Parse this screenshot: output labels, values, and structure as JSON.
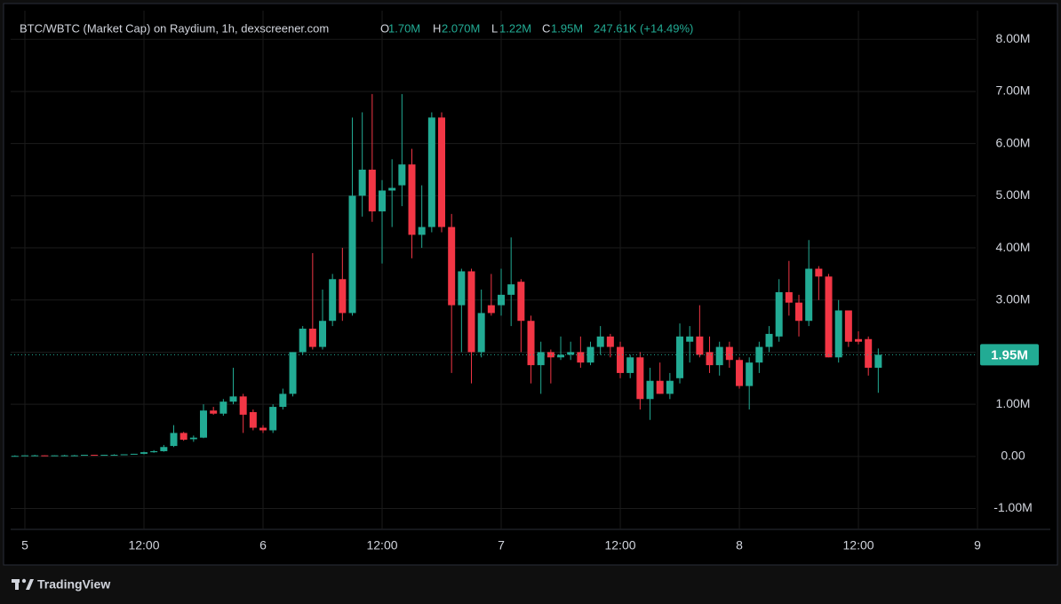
{
  "chart_data": {
    "type": "candlestick",
    "title": "BTC/WBTC (Market Cap) on Raydium, 1h, dexscreener.com",
    "legend": [
      {
        "key": "O",
        "value": "1.70M"
      },
      {
        "key": "H",
        "value": "2.070M"
      },
      {
        "key": "L",
        "value": "1.22M"
      },
      {
        "key": "C",
        "value": "1.95M"
      }
    ],
    "change": "247.61K (+14.49%)",
    "brand": "TradingView",
    "up_color": "#22ab94",
    "down_color": "#f23645",
    "grid": true,
    "ylim": [
      -1.4,
      8.55
    ],
    "yticks": [
      {
        "value": -1,
        "label": "-1.00M"
      },
      {
        "value": 0,
        "label": "0.00"
      },
      {
        "value": 1,
        "label": "1.00M"
      },
      {
        "value": 2,
        "label": "2.00M"
      },
      {
        "value": 3,
        "label": "3.00M"
      },
      {
        "value": 4,
        "label": "4.00M"
      },
      {
        "value": 5,
        "label": "5.00M"
      },
      {
        "value": 6,
        "label": "6.00M"
      },
      {
        "value": 7,
        "label": "7.00M"
      },
      {
        "value": 8,
        "label": "8.00M"
      }
    ],
    "last_price": {
      "value": 1.95,
      "label": "1.95M"
    },
    "categories": [
      null,
      "5",
      null,
      null,
      null,
      null,
      null,
      null,
      null,
      null,
      null,
      null,
      null,
      "12:00",
      null,
      null,
      null,
      null,
      null,
      null,
      null,
      null,
      null,
      null,
      null,
      "6",
      null,
      null,
      null,
      null,
      null,
      null,
      null,
      null,
      null,
      null,
      null,
      "12:00",
      null,
      null,
      null,
      null,
      null,
      null,
      null,
      null,
      null,
      null,
      null,
      "7",
      null,
      null,
      null,
      null,
      null,
      null,
      null,
      null,
      null,
      null,
      null,
      "12:00",
      null,
      null,
      null,
      null,
      null,
      null,
      null,
      null,
      null,
      null,
      null,
      "8",
      null,
      null,
      null,
      null,
      null,
      null,
      null,
      null,
      null,
      null,
      null,
      "12:00",
      null,
      null,
      null,
      null,
      null,
      null,
      null,
      null,
      null,
      null,
      null,
      "9"
    ],
    "open": [
      0.01,
      0.01,
      0.02,
      0.02,
      0.01,
      0.02,
      0.02,
      0.02,
      0.03,
      0.02,
      0.03,
      0.03,
      0.04,
      0.05,
      0.08,
      0.1,
      0.2,
      0.45,
      0.33,
      0.36,
      0.88,
      0.82,
      1.05,
      1.15,
      0.85,
      0.55,
      0.5,
      0.95,
      1.2,
      2.0,
      2.45,
      2.1,
      2.6,
      3.4,
      2.75,
      5.0,
      5.5,
      4.7,
      5.1,
      5.2,
      5.6,
      4.25,
      4.4,
      6.5,
      4.4,
      2.9,
      3.55,
      2.0,
      2.9,
      2.9,
      3.1,
      3.35,
      2.6,
      1.75,
      2.0,
      1.9,
      1.95,
      2.0,
      1.8,
      2.1,
      2.3,
      2.1,
      1.6,
      1.9,
      1.1,
      1.45,
      1.2,
      1.5,
      2.2,
      2.3,
      2.0,
      1.75,
      2.1,
      1.85,
      1.35,
      1.8,
      2.1,
      2.3,
      3.15,
      2.95,
      2.6,
      3.6,
      3.45,
      1.9,
      2.8,
      2.25,
      2.25,
      1.7,
      null,
      null,
      null,
      null,
      null,
      null,
      null,
      null,
      null,
      null
    ],
    "high": [
      0.02,
      0.02,
      0.03,
      0.02,
      0.02,
      0.03,
      0.03,
      0.03,
      0.03,
      0.03,
      0.04,
      0.04,
      0.05,
      0.09,
      0.12,
      0.22,
      0.6,
      0.47,
      0.4,
      1.0,
      0.95,
      1.1,
      1.7,
      1.2,
      0.9,
      0.6,
      1.0,
      1.3,
      2.0,
      2.5,
      3.9,
      3.2,
      3.5,
      4.0,
      6.5,
      6.6,
      6.95,
      5.3,
      5.7,
      6.95,
      5.9,
      5.2,
      6.6,
      6.6,
      4.65,
      3.6,
      3.6,
      3.2,
      3.5,
      3.6,
      4.2,
      3.4,
      2.7,
      2.2,
      2.05,
      2.3,
      2.2,
      2.3,
      2.2,
      2.5,
      2.35,
      2.2,
      1.95,
      2.0,
      1.7,
      1.8,
      1.6,
      2.55,
      2.5,
      2.9,
      2.3,
      2.2,
      2.2,
      1.9,
      1.9,
      2.2,
      2.5,
      3.4,
      3.75,
      3.1,
      4.15,
      3.65,
      3.5,
      3.0,
      2.8,
      2.4,
      2.3,
      2.07,
      null,
      null,
      null,
      null,
      null,
      null,
      null,
      null,
      null,
      null
    ],
    "low": [
      0.0,
      0.01,
      0.01,
      0.01,
      0.01,
      0.01,
      0.02,
      0.02,
      0.02,
      0.02,
      0.02,
      0.03,
      0.04,
      0.04,
      0.07,
      0.09,
      0.18,
      0.3,
      0.28,
      0.35,
      0.8,
      0.78,
      1.0,
      0.45,
      0.5,
      0.45,
      0.45,
      0.9,
      1.15,
      1.95,
      2.05,
      2.05,
      2.5,
      2.6,
      2.7,
      4.6,
      4.5,
      3.7,
      4.4,
      4.8,
      3.8,
      4.0,
      4.3,
      4.3,
      1.6,
      2.0,
      1.4,
      1.9,
      2.7,
      2.7,
      2.5,
      2.0,
      1.4,
      1.2,
      1.4,
      1.85,
      1.85,
      1.7,
      1.75,
      1.95,
      1.9,
      1.5,
      1.5,
      0.9,
      0.7,
      1.2,
      1.1,
      1.4,
      1.8,
      1.9,
      1.6,
      1.55,
      1.7,
      1.3,
      0.9,
      1.6,
      2.0,
      2.2,
      2.7,
      2.3,
      2.5,
      3.0,
      1.9,
      1.8,
      2.1,
      2.15,
      1.55,
      1.22,
      null,
      null,
      null,
      null,
      null,
      null,
      null,
      null,
      null,
      null
    ],
    "close": [
      0.01,
      0.02,
      0.02,
      0.01,
      0.02,
      0.02,
      0.02,
      0.03,
      0.02,
      0.03,
      0.03,
      0.04,
      0.05,
      0.08,
      0.1,
      0.18,
      0.45,
      0.32,
      0.36,
      0.88,
      0.82,
      1.05,
      1.15,
      0.8,
      0.55,
      0.5,
      0.95,
      1.2,
      2.0,
      2.45,
      2.1,
      2.6,
      3.4,
      2.75,
      5.0,
      5.5,
      4.7,
      5.1,
      5.15,
      5.6,
      4.25,
      4.4,
      6.5,
      4.4,
      2.9,
      3.55,
      2.0,
      2.75,
      2.75,
      3.1,
      3.3,
      2.6,
      1.75,
      2.0,
      1.9,
      1.95,
      2.0,
      1.8,
      2.1,
      2.3,
      2.1,
      1.6,
      1.9,
      1.1,
      1.45,
      1.2,
      1.45,
      2.3,
      2.3,
      1.95,
      1.75,
      2.1,
      1.85,
      1.35,
      1.8,
      2.1,
      2.35,
      3.15,
      2.95,
      2.6,
      3.6,
      3.45,
      1.9,
      2.8,
      2.2,
      2.2,
      1.7,
      1.95,
      null,
      null,
      null,
      null,
      null,
      null,
      null,
      null,
      null,
      null
    ]
  }
}
